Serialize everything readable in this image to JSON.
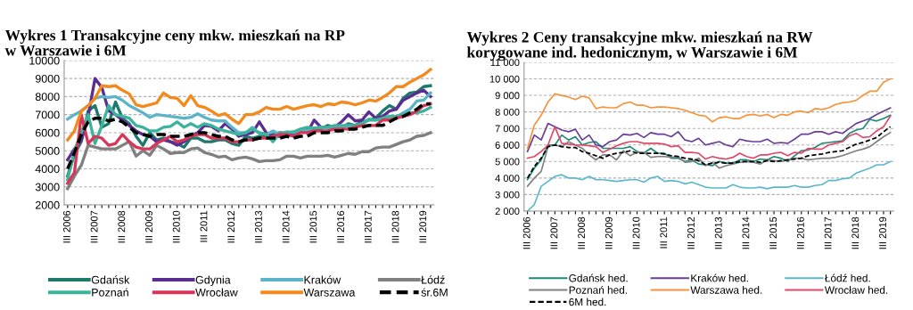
{
  "chart_data": [
    {
      "type": "line",
      "title": "Wykres 1 Transakcyjne ceny mkw. mieszkań na RP\nw Warszawie i 6M",
      "categories": [
        "III 2006",
        null,
        null,
        null,
        "III 2007",
        null,
        null,
        null,
        "III 2008",
        null,
        null,
        null,
        "III 2009",
        null,
        null,
        null,
        "III 2010",
        null,
        null,
        null,
        "III 2011",
        null,
        null,
        null,
        "III 2012",
        null,
        null,
        null,
        "III 2013",
        null,
        null,
        null,
        "III 2014",
        null,
        null,
        null,
        "III 2015",
        null,
        null,
        null,
        "III 2016",
        null,
        null,
        null,
        "III 2017",
        null,
        null,
        null,
        "III 2018",
        null,
        null,
        null,
        "III 2019",
        null
      ],
      "ylim": [
        2000,
        10000
      ],
      "yticks": [
        2000,
        3000,
        4000,
        5000,
        6000,
        7000,
        8000,
        9000,
        10000
      ],
      "grid": "y",
      "legend": "bottom",
      "marker": "none",
      "series": [
        {
          "name": "Gdańsk",
          "color": "#1b7a6a",
          "values": [
            3600,
            4800,
            5500,
            7200,
            7500,
            6300,
            6500,
            7700,
            6800,
            6500,
            5800,
            5300,
            6000,
            5600,
            5700,
            5500,
            5400,
            5200,
            5700,
            5700,
            5500,
            5500,
            5600,
            5600,
            5400,
            5300,
            5800,
            5700,
            5800,
            5800,
            5900,
            6000,
            5900,
            5800,
            6100,
            6200,
            6200,
            6200,
            6400,
            6300,
            6250,
            6500,
            6400,
            6600,
            6700,
            6800,
            7200,
            7500,
            7300,
            7900,
            8200,
            8250,
            8550,
            8600
          ]
        },
        {
          "name": "Gdynia",
          "color": "#5c2d91",
          "values": [
            4500,
            5100,
            5600,
            6900,
            9000,
            8500,
            7200,
            7000,
            6700,
            6400,
            6100,
            5900,
            5800,
            5500,
            5600,
            5500,
            5300,
            5500,
            5800,
            6000,
            6400,
            6350,
            6100,
            6500,
            6200,
            5800,
            5900,
            6000,
            6600,
            6000,
            5800,
            5800,
            5900,
            5900,
            6100,
            6000,
            6700,
            6300,
            6300,
            6300,
            6600,
            7000,
            6650,
            6700,
            7150,
            6800,
            6900,
            7200,
            7300,
            7800,
            8000,
            8200,
            8350,
            8000
          ]
        },
        {
          "name": "Kraków",
          "color": "#5bb4c8",
          "values": [
            6750,
            7000,
            7200,
            7500,
            7900,
            8000,
            7950,
            8000,
            7800,
            7500,
            7300,
            7100,
            6850,
            7000,
            6950,
            6900,
            6850,
            6800,
            6850,
            7050,
            6850,
            6700,
            6650,
            6650,
            6300,
            6000,
            6000,
            6300,
            5950,
            5900,
            6100,
            5900,
            6050,
            6000,
            6150,
            6100,
            6250,
            6300,
            6250,
            6300,
            6300,
            6400,
            6350,
            6500,
            6750,
            6700,
            6750,
            6750,
            6850,
            7100,
            7300,
            7750,
            7800,
            8200
          ]
        },
        {
          "name": "Łódź",
          "color": "#808080",
          "values": [
            2900,
            3600,
            4200,
            5300,
            5200,
            5100,
            5100,
            5100,
            5300,
            5500,
            4700,
            5000,
            4750,
            5300,
            5100,
            4850,
            4900,
            4900,
            5100,
            5150,
            4900,
            4800,
            4650,
            4700,
            4500,
            4600,
            4650,
            4550,
            4400,
            4450,
            4450,
            4500,
            4700,
            4700,
            4600,
            4700,
            4700,
            4700,
            4750,
            4650,
            4750,
            4850,
            4800,
            4950,
            4950,
            5150,
            5200,
            5200,
            5350,
            5500,
            5600,
            5800,
            5850,
            6000
          ]
        },
        {
          "name": "Poznań",
          "color": "#3cb39b",
          "values": [
            3400,
            5000,
            6000,
            7000,
            5400,
            6400,
            7500,
            7000,
            6900,
            6800,
            6400,
            6300,
            6100,
            6100,
            6300,
            6350,
            6600,
            6300,
            6500,
            6300,
            6500,
            6400,
            6200,
            6100,
            6000,
            5900,
            6000,
            6200,
            6000,
            5900,
            5500,
            6000,
            6000,
            6050,
            6200,
            6300,
            6250,
            6300,
            6300,
            6400,
            6400,
            6400,
            6400,
            6500,
            6700,
            6700,
            6800,
            6900,
            6900,
            7000,
            7100,
            7100,
            7200,
            7400
          ]
        },
        {
          "name": "Wrocław",
          "color": "#d6365a",
          "values": [
            3200,
            3800,
            7000,
            5400,
            5800,
            5700,
            5300,
            5400,
            5900,
            5500,
            5200,
            5100,
            5100,
            5400,
            5600,
            5800,
            5500,
            5600,
            5800,
            5900,
            5900,
            5700,
            5700,
            5700,
            5500,
            5500,
            5600,
            5600,
            5700,
            5700,
            5800,
            5900,
            5900,
            5800,
            6000,
            6000,
            6100,
            6100,
            6100,
            6200,
            6200,
            6200,
            6300,
            6400,
            6400,
            6400,
            6700,
            6700,
            6800,
            6900,
            7000,
            7200,
            7500,
            7600
          ]
        },
        {
          "name": "Warszawa",
          "color": "#f28a1e",
          "values": [
            5600,
            6100,
            7200,
            7500,
            7900,
            8600,
            8550,
            8600,
            8350,
            8150,
            7550,
            7450,
            7550,
            7650,
            8200,
            7950,
            7900,
            7500,
            8050,
            7500,
            7400,
            7200,
            6950,
            7050,
            6750,
            6500,
            7000,
            7000,
            7150,
            7400,
            7300,
            7300,
            7450,
            7300,
            7400,
            7500,
            7550,
            7450,
            7600,
            7550,
            7700,
            7650,
            7550,
            7650,
            7800,
            7750,
            7950,
            8200,
            8550,
            8550,
            8800,
            9000,
            9200,
            9500
          ]
        },
        {
          "name": "śr.6M",
          "color": "#000000",
          "line_style": "dashed",
          "values": [
            4000,
            4900,
            5900,
            6600,
            6800,
            6800,
            6650,
            6750,
            6600,
            6300,
            6000,
            5900,
            5800,
            5900,
            5900,
            5800,
            5800,
            5800,
            5900,
            6000,
            6000,
            5900,
            5800,
            5800,
            5600,
            5500,
            5600,
            5600,
            5700,
            5700,
            5700,
            5700,
            5800,
            5700,
            5800,
            5800,
            6000,
            6000,
            6000,
            6100,
            6100,
            6200,
            6200,
            6300,
            6400,
            6400,
            6400,
            6600,
            6800,
            6900,
            7100,
            7300,
            7600,
            7600
          ]
        }
      ]
    },
    {
      "type": "line",
      "title": "Wykres 2 Ceny transakcyjne mkw. mieszkań na RW\nkorygowane ind. hedonicznym, w Warszawie i 6M",
      "categories": [
        "III 2006",
        null,
        null,
        null,
        "III 2007",
        null,
        null,
        null,
        "III 2008",
        null,
        null,
        null,
        "III 2009",
        null,
        null,
        null,
        "III 2010",
        null,
        null,
        null,
        "III 2011",
        null,
        null,
        null,
        "III 2012",
        null,
        null,
        null,
        "III 2013",
        null,
        null,
        null,
        "III 2014",
        null,
        null,
        null,
        "III 2015",
        null,
        null,
        null,
        "III 2016",
        null,
        null,
        null,
        "III 2017",
        null,
        null,
        null,
        "III 2018",
        null,
        null,
        null,
        "III 2019",
        null
      ],
      "ylim": [
        2000,
        11000
      ],
      "yticks": [
        {
          "value": 2000,
          "label": "2 000"
        },
        {
          "value": 3000,
          "label": "3 000"
        },
        {
          "value": 4000,
          "label": "4 000"
        },
        {
          "value": 5000,
          "label": "5 000"
        },
        {
          "value": 6000,
          "label": "6 000"
        },
        {
          "value": 7000,
          "label": "7 000"
        },
        {
          "value": 8000,
          "label": "8 000"
        },
        {
          "value": 9000,
          "label": "9 000"
        },
        {
          "value": 10000,
          "label": "10 000"
        },
        {
          "value": 11000,
          "label": "11 000"
        }
      ],
      "grid": "y",
      "legend": "bottom",
      "marker": "none",
      "series": [
        {
          "name": "Gdańsk hed.",
          "color": "#1b8a78",
          "values": [
            3900,
            4600,
            5100,
            6000,
            6000,
            6600,
            6300,
            6500,
            6000,
            6150,
            6200,
            5800,
            5800,
            5800,
            5800,
            5900,
            5600,
            5500,
            5800,
            5500,
            5500,
            5200,
            5200,
            5000,
            5100,
            4850,
            4800,
            4750,
            5000,
            4900,
            4900,
            5100,
            5100,
            5000,
            5150,
            5100,
            5300,
            5200,
            5000,
            5350,
            5650,
            5700,
            5850,
            6100,
            6150,
            6200,
            6250,
            6700,
            6900,
            7000,
            7550,
            7450,
            7600,
            7800
          ]
        },
        {
          "name": "Kraków hed.",
          "color": "#6a3d9a",
          "values": [
            5600,
            6600,
            6300,
            7300,
            7100,
            6900,
            6800,
            6950,
            6300,
            6600,
            6000,
            5900,
            6200,
            6300,
            6650,
            6600,
            6700,
            6450,
            6750,
            6650,
            6650,
            6500,
            6800,
            6300,
            6200,
            6400,
            6000,
            6100,
            6200,
            6000,
            5900,
            6350,
            6250,
            6200,
            6200,
            6350,
            6100,
            6150,
            6100,
            6350,
            6650,
            6650,
            6800,
            6800,
            6650,
            6800,
            6700,
            7000,
            7300,
            7450,
            7600,
            7850,
            8050,
            8250
          ]
        },
        {
          "name": "Łódź hed.",
          "color": "#5bb8cc",
          "values": [
            2000,
            2400,
            3500,
            3800,
            4100,
            4200,
            4000,
            4000,
            3900,
            4100,
            3900,
            3900,
            3850,
            3800,
            3850,
            3900,
            3900,
            3750,
            4000,
            4100,
            3800,
            3850,
            3800,
            3650,
            3750,
            3600,
            3450,
            3400,
            3400,
            3400,
            3600,
            3450,
            3400,
            3400,
            3450,
            3350,
            3450,
            3450,
            3450,
            3550,
            3450,
            3450,
            3550,
            3600,
            3850,
            3850,
            3950,
            4000,
            4300,
            4450,
            4600,
            4800,
            4800,
            5000
          ]
        },
        {
          "name": "Poznań hed.",
          "color": "#808080",
          "values": [
            3500,
            4000,
            4400,
            5900,
            6000,
            5900,
            6200,
            6000,
            5800,
            5400,
            5100,
            5400,
            5400,
            5100,
            5650,
            5350,
            5550,
            5550,
            5250,
            5300,
            5300,
            5250,
            5300,
            4950,
            5000,
            5200,
            4750,
            4950,
            4600,
            4750,
            4850,
            4950,
            5000,
            4950,
            4850,
            5100,
            5050,
            5000,
            5100,
            5200,
            5200,
            5100,
            5150,
            5200,
            5200,
            5250,
            5350,
            5500,
            5650,
            5750,
            5900,
            6200,
            6500,
            6750
          ]
        },
        {
          "name": "Warszawa hed.",
          "color": "#f7923a",
          "values": [
            5800,
            7200,
            7800,
            8600,
            9100,
            9000,
            8900,
            8750,
            8950,
            8850,
            8200,
            8300,
            8250,
            8250,
            8500,
            8600,
            8400,
            8400,
            8250,
            8300,
            8300,
            8250,
            8200,
            8100,
            7950,
            7800,
            7750,
            7400,
            7650,
            7700,
            7600,
            7600,
            7800,
            7850,
            7750,
            7850,
            7650,
            7850,
            7800,
            8000,
            8050,
            7950,
            8200,
            8150,
            8250,
            8450,
            8550,
            8600,
            8700,
            9000,
            9250,
            9250,
            9800,
            10000
          ]
        },
        {
          "name": "Wrocław hed.",
          "color": "#e0486a",
          "values": [
            5200,
            5300,
            5600,
            6000,
            7100,
            6100,
            6050,
            6000,
            6000,
            5950,
            5900,
            5550,
            5750,
            5950,
            6100,
            6200,
            6200,
            6100,
            6100,
            6100,
            6050,
            5900,
            5950,
            5550,
            5550,
            5500,
            5150,
            5300,
            5200,
            5150,
            5250,
            5500,
            5300,
            5200,
            5400,
            5400,
            5500,
            5550,
            5350,
            5550,
            5500,
            5800,
            5750,
            5750,
            6000,
            6100,
            6200,
            6550,
            6700,
            6450,
            6500,
            6850,
            7100,
            7750
          ]
        },
        {
          "name": "6M hed.",
          "color": "#000000",
          "line_style": "dashed",
          "values": [
            4000,
            4700,
            5200,
            5900,
            6000,
            5900,
            5850,
            5850,
            5600,
            5500,
            5350,
            5200,
            5400,
            5500,
            5550,
            5650,
            5500,
            5500,
            5500,
            5500,
            5450,
            5350,
            5300,
            5200,
            5150,
            5050,
            4800,
            4900,
            4950,
            4900,
            4900,
            5000,
            5000,
            5000,
            4950,
            5050,
            5000,
            5050,
            5100,
            5150,
            5200,
            5350,
            5400,
            5450,
            5550,
            5600,
            5650,
            5850,
            6050,
            6150,
            6300,
            6450,
            6800,
            7100
          ]
        }
      ]
    }
  ]
}
